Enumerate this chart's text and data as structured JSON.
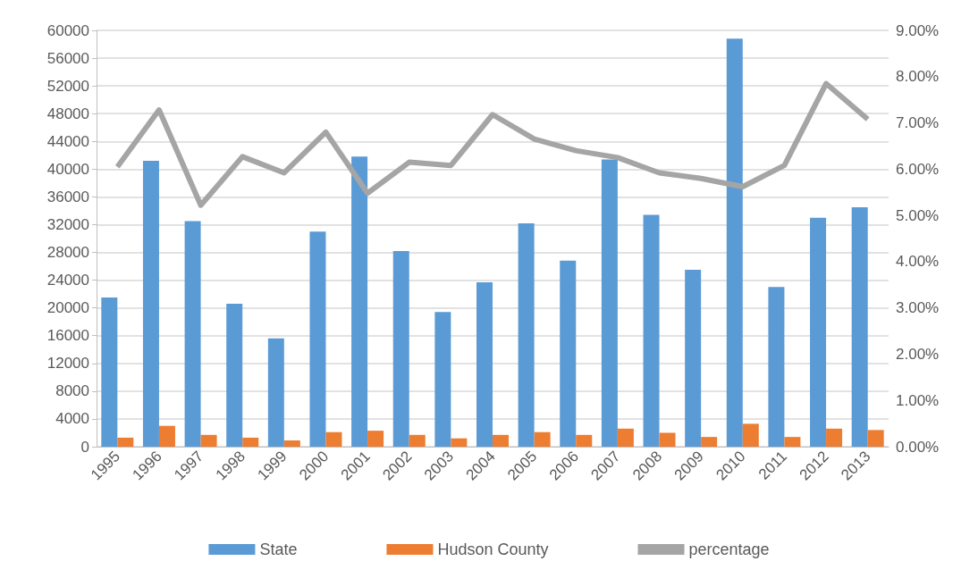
{
  "chart_data": {
    "type": "bar",
    "categories": [
      "1995",
      "1996",
      "1997",
      "1998",
      "1999",
      "2000",
      "2001",
      "2002",
      "2003",
      "2004",
      "2005",
      "2006",
      "2007",
      "2008",
      "2009",
      "2010",
      "2011",
      "2012",
      "2013"
    ],
    "series": [
      {
        "name": "State",
        "color": "#5b9bd5",
        "values": [
          21500,
          41200,
          32500,
          20600,
          15600,
          31000,
          41800,
          28200,
          19400,
          23700,
          32200,
          26800,
          41400,
          33400,
          25500,
          58800,
          23000,
          33000,
          34500
        ]
      },
      {
        "name": "Hudson County",
        "color": "#ed7d31",
        "values": [
          1300,
          3000,
          1700,
          1300,
          900,
          2100,
          2300,
          1700,
          1200,
          1700,
          2100,
          1700,
          2600,
          2000,
          1400,
          3300,
          1400,
          2600,
          2400
        ]
      },
      {
        "name": "percentage",
        "type": "line",
        "axis": "y2",
        "color": "#a5a5a5",
        "values": [
          6.05,
          7.28,
          5.22,
          6.27,
          5.92,
          6.8,
          5.48,
          6.15,
          6.08,
          7.18,
          6.65,
          6.4,
          6.25,
          5.92,
          5.8,
          5.62,
          6.08,
          7.85,
          7.08
        ]
      }
    ],
    "ylim": [
      0,
      60000
    ],
    "yticks": [
      0,
      4000,
      8000,
      12000,
      16000,
      20000,
      24000,
      28000,
      32000,
      36000,
      40000,
      44000,
      48000,
      52000,
      56000,
      60000
    ],
    "y2lim": [
      0,
      9
    ],
    "y2ticks": [
      {
        "value": 0,
        "label": "0.00%"
      },
      {
        "value": 1,
        "label": "1.00%"
      },
      {
        "value": 2,
        "label": "2.00%"
      },
      {
        "value": 3,
        "label": "3.00%"
      },
      {
        "value": 4,
        "label": "4.00%"
      },
      {
        "value": 5,
        "label": "5.00%"
      },
      {
        "value": 6,
        "label": "6.00%"
      },
      {
        "value": 7,
        "label": "7.00%"
      },
      {
        "value": 8,
        "label": "8.00%"
      },
      {
        "value": 9,
        "label": "9.00%"
      }
    ],
    "grid": "y",
    "legend": "bottom",
    "marker": "none"
  }
}
